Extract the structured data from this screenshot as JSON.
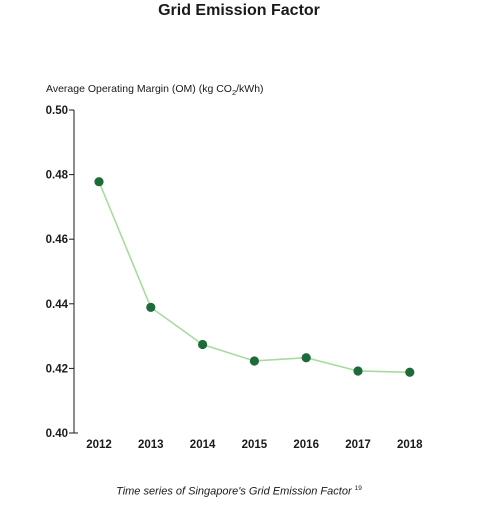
{
  "chart_data": {
    "type": "line",
    "title": "Grid Emission Factor",
    "ylabel_main": "Average Operating Margin (OM) (kg CO",
    "ylabel_sub": "2",
    "ylabel_tail": "/kWh)",
    "xlabel": "",
    "categories": [
      "2012",
      "2013",
      "2014",
      "2015",
      "2016",
      "2017",
      "2018"
    ],
    "series": [
      {
        "values": [
          0.4778,
          0.4389,
          0.4274,
          0.4223,
          0.4233,
          0.4192,
          0.4188
        ]
      }
    ],
    "ylim": [
      0.4,
      0.5
    ],
    "yticks": [
      "0.40",
      "0.42",
      "0.44",
      "0.46",
      "0.48",
      "0.50"
    ],
    "grid": false,
    "line_color": "#a8dc9e",
    "marker_color": "#1e6b3a"
  },
  "caption": {
    "text": "Time series of Singapore's Grid Emission Factor ",
    "ref": "19"
  }
}
